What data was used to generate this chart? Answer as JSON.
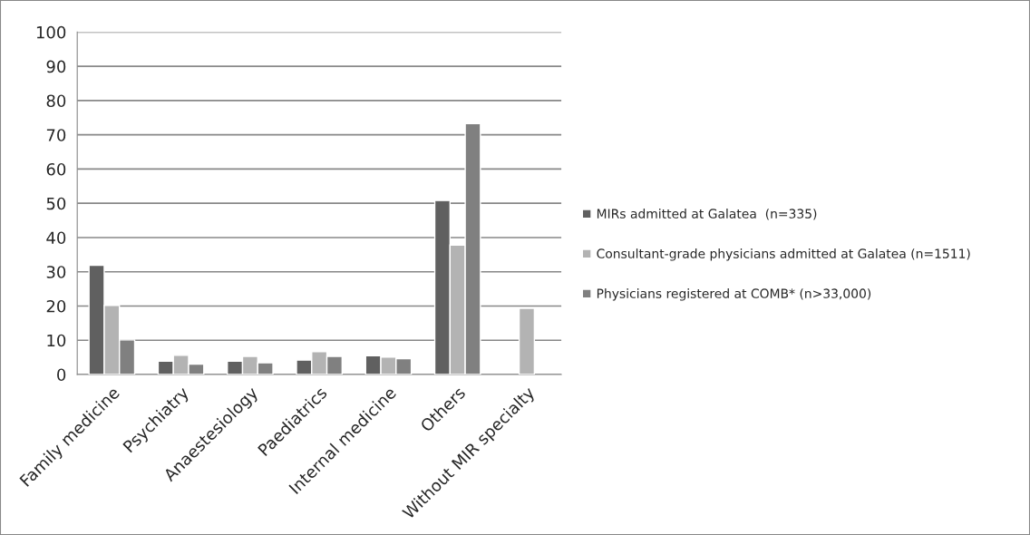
{
  "chart_data": {
    "type": "bar",
    "categories": [
      "Family medicine",
      "Psychiatry",
      "Anaestesiology",
      "Paediatrics",
      "Internal medicine",
      "Others",
      "Without MIR specialty"
    ],
    "series": [
      {
        "name": "MIRs admitted at Galatea  (n=335)",
        "color": "#606060",
        "values": [
          31.9,
          3.9,
          3.9,
          4.2,
          5.5,
          50.8,
          null
        ]
      },
      {
        "name": "Consultant-grade physicians admitted at Galatea (n=1511)",
        "color": "#b3b3b3",
        "values": [
          20.2,
          5.6,
          5.3,
          6.7,
          5.1,
          37.8,
          19.3
        ]
      },
      {
        "name": "Physicians registered at COMB* (n>33,000)",
        "color": "#808080",
        "values": [
          10.1,
          3.0,
          3.4,
          5.3,
          4.6,
          73.3,
          null
        ]
      }
    ],
    "ylim": [
      0,
      100
    ],
    "yticks": [
      0,
      10,
      20,
      30,
      40,
      50,
      60,
      70,
      80,
      90,
      100
    ],
    "grid": "y",
    "legend": "right"
  }
}
